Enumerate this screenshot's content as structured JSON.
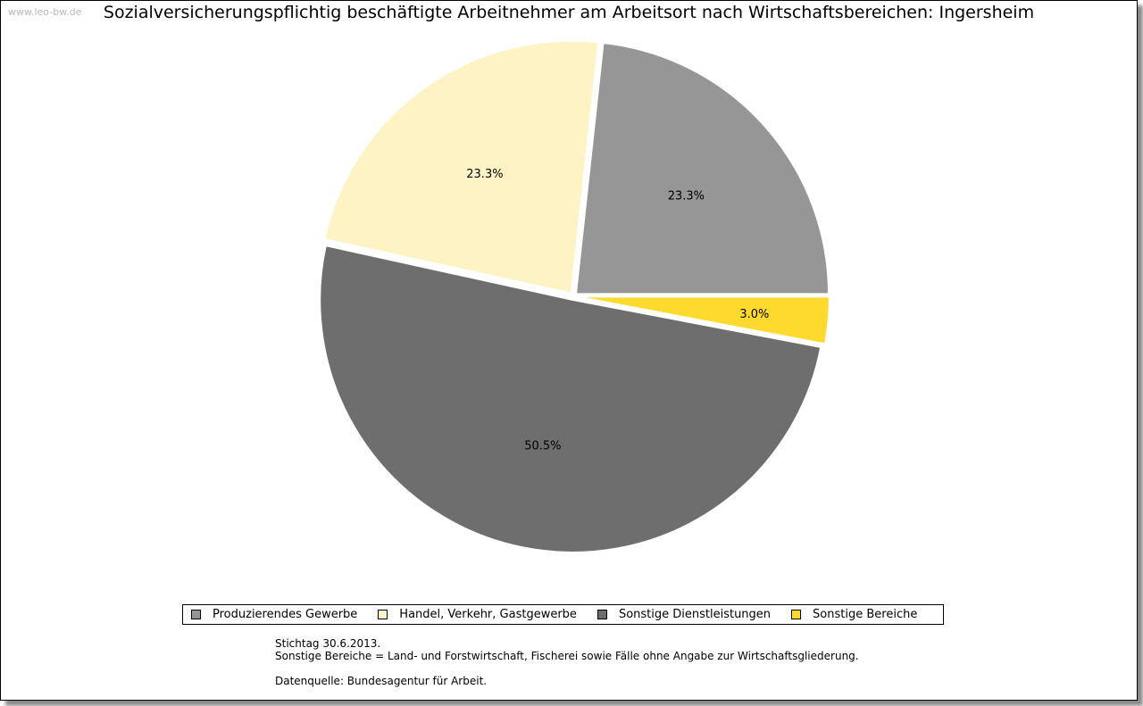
{
  "watermark": "www.leo-bw.de",
  "chart_data": {
    "type": "pie",
    "title": "Sozialversicherungspflichtig beschäftigte Arbeitnehmer am Arbeitsort nach Wirtschaftsbereichen: Ingersheim",
    "slices": [
      {
        "name": "Produzierendes Gewerbe",
        "value": 23.3,
        "label": "23.3%",
        "color": "#969696"
      },
      {
        "name": "Handel, Verkehr, Gastgewerbe",
        "value": 23.3,
        "label": "23.3%",
        "color": "#fdf3c4"
      },
      {
        "name": "Sonstige Dienstleistungen",
        "value": 50.5,
        "label": "50.5%",
        "color": "#6e6e6e"
      },
      {
        "name": "Sonstige Bereiche",
        "value": 3.0,
        "label": "3.0%",
        "color": "#fed92e"
      }
    ],
    "legend_position": "bottom"
  },
  "notes": {
    "line1": "Stichtag 30.6.2013.",
    "line2": "Sonstige Bereiche = Land- und Forstwirtschaft, Fischerei sowie Fälle ohne Angabe zur Wirtschaftsgliederung.",
    "line3": "Datenquelle: Bundesagentur für Arbeit."
  }
}
